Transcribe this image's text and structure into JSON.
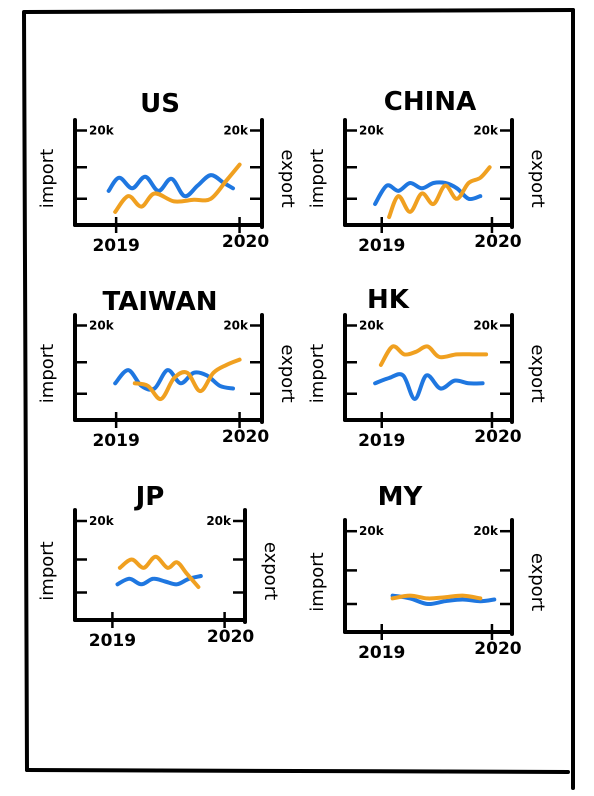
{
  "chart_data": [
    {
      "type": "line",
      "title": "US",
      "left_label": "import",
      "right_label": "export",
      "left_top_tick": "20k",
      "right_top_tick": "20k",
      "x_start_label": "2019",
      "x_end_label": "2020",
      "ylim": [
        0,
        20000
      ],
      "series": [
        {
          "name": "import",
          "color": "#1f77e0",
          "x": [
            0,
            0.08,
            0.18,
            0.28,
            0.38,
            0.48,
            0.58,
            0.68,
            0.78,
            0.88,
            0.95
          ],
          "y": [
            6500,
            9000,
            7000,
            9200,
            6500,
            8800,
            5500,
            7500,
            9500,
            8000,
            7000
          ]
        },
        {
          "name": "export",
          "color": "#f0a020",
          "x": [
            0.05,
            0.15,
            0.25,
            0.35,
            0.5,
            0.65,
            0.78,
            0.9,
            1.0
          ],
          "y": [
            2500,
            5500,
            3500,
            6000,
            4500,
            4800,
            5000,
            8500,
            11500
          ]
        }
      ]
    },
    {
      "type": "line",
      "title": "CHINA",
      "left_label": "import",
      "right_label": "export",
      "left_top_tick": "20k",
      "right_top_tick": "20k",
      "x_start_label": "2019",
      "x_end_label": "2020",
      "ylim": [
        0,
        20000
      ],
      "series": [
        {
          "name": "import",
          "color": "#1f77e0",
          "x": [
            0,
            0.1,
            0.2,
            0.3,
            0.4,
            0.5,
            0.6,
            0.7,
            0.8,
            0.9
          ],
          "y": [
            4000,
            7500,
            6500,
            8000,
            7000,
            8000,
            8000,
            7000,
            5000,
            5500
          ]
        },
        {
          "name": "export",
          "color": "#f0a020",
          "x": [
            0.12,
            0.2,
            0.3,
            0.4,
            0.5,
            0.6,
            0.7,
            0.8,
            0.9,
            0.98
          ],
          "y": [
            1500,
            5500,
            2500,
            6000,
            4000,
            7500,
            5000,
            8000,
            9000,
            11000
          ]
        }
      ]
    },
    {
      "type": "line",
      "title": "TAIWAN",
      "left_label": "import",
      "right_label": "export",
      "left_top_tick": "20k",
      "right_top_tick": "20k",
      "x_start_label": "2019",
      "x_end_label": "2020",
      "ylim": [
        0,
        20000
      ],
      "series": [
        {
          "name": "import",
          "color": "#1f77e0",
          "x": [
            0.05,
            0.15,
            0.25,
            0.35,
            0.45,
            0.55,
            0.65,
            0.75,
            0.85,
            0.95
          ],
          "y": [
            7000,
            9500,
            6500,
            6000,
            9500,
            7000,
            9000,
            8500,
            6500,
            6000
          ]
        },
        {
          "name": "export",
          "color": "#f0a020",
          "x": [
            0.2,
            0.3,
            0.4,
            0.5,
            0.6,
            0.7,
            0.8,
            0.9,
            1.0
          ],
          "y": [
            7000,
            6500,
            4000,
            8000,
            9000,
            5500,
            9000,
            10500,
            11500
          ]
        }
      ]
    },
    {
      "type": "line",
      "title": "HK",
      "left_label": "import",
      "right_label": "export",
      "left_top_tick": "20k",
      "right_top_tick": "20k",
      "x_start_label": "2019",
      "x_end_label": "2020",
      "ylim": [
        0,
        20000
      ],
      "series": [
        {
          "name": "import",
          "color": "#1f77e0",
          "x": [
            0,
            0.12,
            0.24,
            0.34,
            0.44,
            0.56,
            0.68,
            0.8,
            0.92
          ],
          "y": [
            7000,
            8000,
            8500,
            4000,
            8500,
            6000,
            7500,
            7000,
            7000
          ]
        },
        {
          "name": "export",
          "color": "#f0a020",
          "x": [
            0.05,
            0.15,
            0.25,
            0.35,
            0.45,
            0.55,
            0.7,
            0.85,
            0.95
          ],
          "y": [
            10500,
            14000,
            12500,
            13000,
            14000,
            12000,
            12500,
            12500,
            12500
          ]
        }
      ]
    },
    {
      "type": "line",
      "title": "JP",
      "left_label": "import",
      "right_label": "export",
      "left_top_tick": "20k",
      "right_top_tick": "20k",
      "x_start_label": "2019",
      "x_end_label": "2020",
      "ylim": [
        0,
        20000
      ],
      "series": [
        {
          "name": "import",
          "color": "#1f77e0",
          "x": [
            0.1,
            0.2,
            0.3,
            0.4,
            0.5,
            0.6,
            0.7,
            0.8
          ],
          "y": [
            6500,
            7500,
            6500,
            7500,
            7000,
            6500,
            7500,
            8000
          ]
        },
        {
          "name": "export",
          "color": "#f0a020",
          "x": [
            0.12,
            0.22,
            0.32,
            0.42,
            0.52,
            0.6,
            0.68,
            0.78
          ],
          "y": [
            9500,
            11000,
            9500,
            11500,
            9500,
            10500,
            8500,
            6000
          ]
        }
      ]
    },
    {
      "type": "line",
      "title": "MY",
      "left_label": "import",
      "right_label": "export",
      "left_top_tick": "20k",
      "right_top_tick": "20k",
      "x_start_label": "2019",
      "x_end_label": "2020",
      "ylim": [
        0,
        20000
      ],
      "series": [
        {
          "name": "import",
          "color": "#1f77e0",
          "x": [
            0.15,
            0.3,
            0.45,
            0.6,
            0.75,
            0.9,
            1.02
          ],
          "y": [
            6500,
            6000,
            5000,
            5500,
            5800,
            5500,
            5800
          ]
        },
        {
          "name": "export",
          "color": "#f0a020",
          "x": [
            0.15,
            0.3,
            0.45,
            0.6,
            0.75,
            0.9
          ],
          "y": [
            6000,
            6500,
            6000,
            6200,
            6500,
            6000
          ]
        }
      ]
    }
  ]
}
